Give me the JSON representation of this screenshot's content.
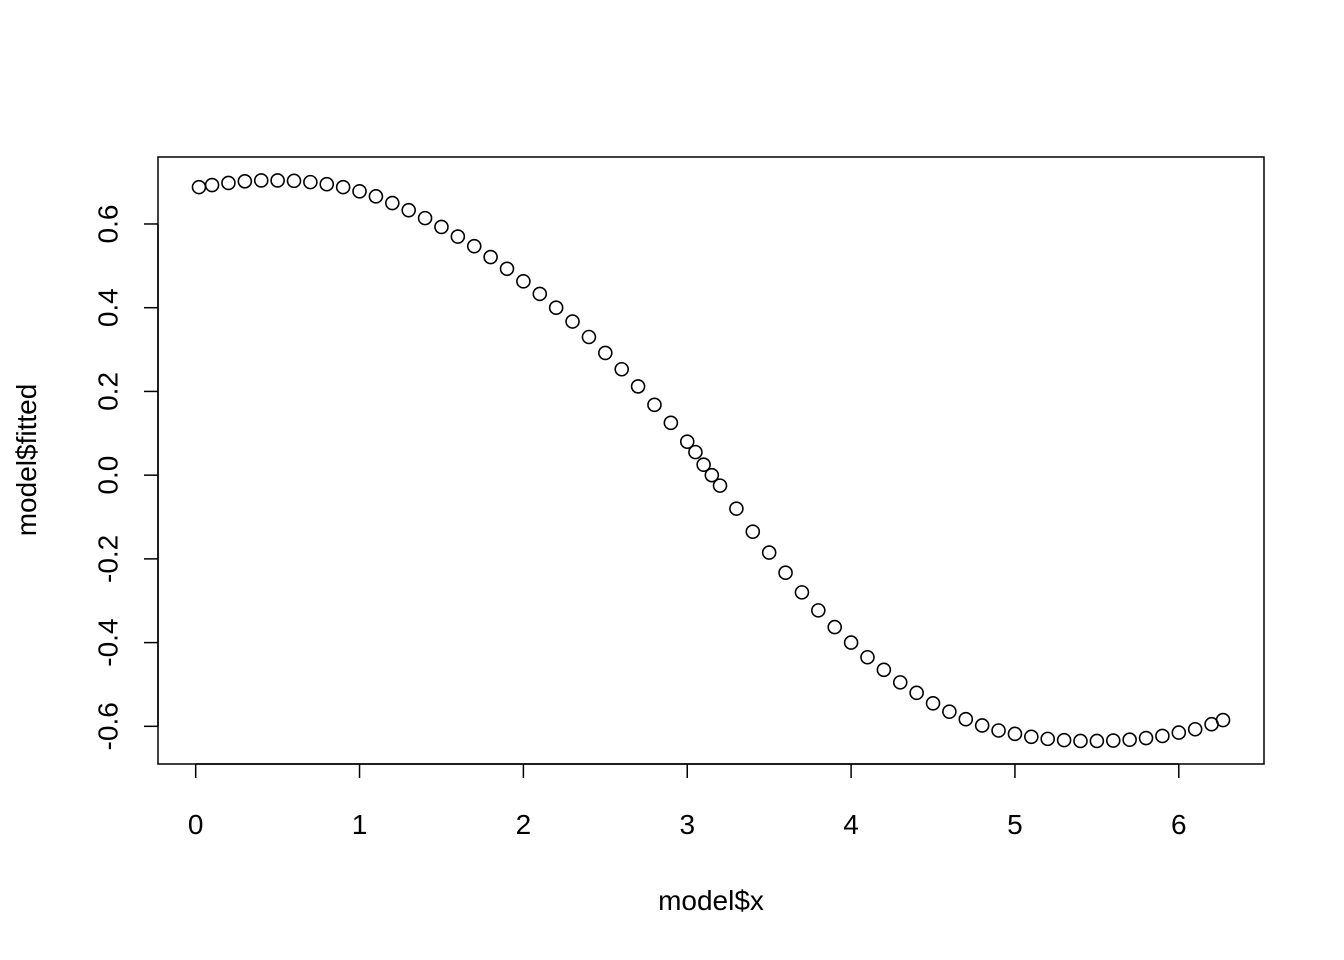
{
  "chart_data": {
    "type": "scatter",
    "title": "",
    "xlabel": "model$x",
    "ylabel": "model$fitted",
    "xlim": [
      -0.23,
      6.52
    ],
    "ylim": [
      -0.69,
      0.76
    ],
    "xticks": [
      0,
      1,
      2,
      3,
      4,
      5,
      6
    ],
    "yticks": [
      -0.6,
      -0.4,
      -0.2,
      0.0,
      0.2,
      0.4,
      0.6
    ],
    "xtick_labels": [
      "0",
      "1",
      "2",
      "3",
      "4",
      "5",
      "6"
    ],
    "ytick_labels": [
      "-0.6",
      "-0.4",
      "-0.2",
      "0.0",
      "0.2",
      "0.4",
      "0.6"
    ],
    "grid": false,
    "marker": "open-circle",
    "series": [
      {
        "x": [
          0.02,
          0.1,
          0.2,
          0.3,
          0.4,
          0.5,
          0.6,
          0.7,
          0.8,
          0.9,
          1.0,
          1.1,
          1.2,
          1.3,
          1.4,
          1.5,
          1.6,
          1.7,
          1.8,
          1.9,
          2.0,
          2.1,
          2.2,
          2.3,
          2.4,
          2.5,
          2.6,
          2.7,
          2.8,
          2.9,
          3.0,
          3.05,
          3.1,
          3.15,
          3.2,
          3.3,
          3.4,
          3.5,
          3.6,
          3.7,
          3.8,
          3.9,
          4.0,
          4.1,
          4.2,
          4.3,
          4.4,
          4.5,
          4.6,
          4.7,
          4.8,
          4.9,
          5.0,
          5.1,
          5.2,
          5.3,
          5.4,
          5.5,
          5.6,
          5.7,
          5.8,
          5.9,
          6.0,
          6.1,
          6.2,
          6.27
        ],
        "y": [
          0.688,
          0.693,
          0.698,
          0.702,
          0.704,
          0.704,
          0.703,
          0.7,
          0.695,
          0.688,
          0.678,
          0.666,
          0.65,
          0.633,
          0.614,
          0.593,
          0.57,
          0.547,
          0.521,
          0.493,
          0.463,
          0.433,
          0.4,
          0.367,
          0.33,
          0.292,
          0.253,
          0.212,
          0.168,
          0.125,
          0.08,
          0.055,
          0.025,
          0.0,
          -0.025,
          -0.08,
          -0.135,
          -0.185,
          -0.233,
          -0.28,
          -0.323,
          -0.363,
          -0.4,
          -0.435,
          -0.465,
          -0.495,
          -0.52,
          -0.545,
          -0.565,
          -0.583,
          -0.598,
          -0.61,
          -0.618,
          -0.625,
          -0.63,
          -0.633,
          -0.635,
          -0.635,
          -0.634,
          -0.632,
          -0.628,
          -0.623,
          -0.615,
          -0.607,
          -0.595,
          -0.585
        ]
      }
    ]
  }
}
